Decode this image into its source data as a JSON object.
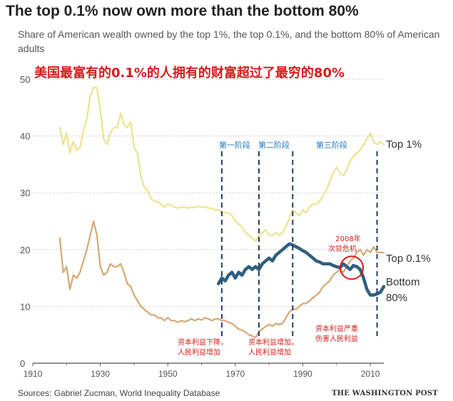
{
  "header": {
    "title": "The top 0.1% now own more than the bottom 80%",
    "subtitle": "Share of American wealth owned by the top 1%, the top 0.1%, and the bottom 80% of American adults",
    "cn_title": "美国最富有的0.1%的人拥有的财富超过了最穷的80%"
  },
  "footer": {
    "source": "Sources: Gabriel Zucman, World Inequality Database",
    "brand": "THE WASHINGTON POST"
  },
  "colors": {
    "top1": "#ece38e",
    "top01": "#d9a772",
    "bottom80": "#2f5f80",
    "marker": "#1f3e6e",
    "annotation": "#d81b1b",
    "phase": "#1e78c8"
  },
  "chart_data": {
    "type": "line",
    "title": "The top 0.1% now own more than the bottom 80%",
    "xlabel": "",
    "ylabel": "",
    "xlim": [
      1910,
      2014
    ],
    "ylim": [
      0,
      50
    ],
    "xticks": [
      1910,
      1930,
      1950,
      1970,
      1990,
      2010
    ],
    "yticks": [
      0,
      10,
      20,
      30,
      40,
      50
    ],
    "grid": "horizontal",
    "series": [
      {
        "name": "Top 1%",
        "label": "Top 1%",
        "x": [
          1918,
          1919,
          1920,
          1921,
          1922,
          1923,
          1924,
          1925,
          1926,
          1927,
          1928,
          1929,
          1930,
          1931,
          1932,
          1933,
          1934,
          1935,
          1936,
          1937,
          1938,
          1939,
          1940,
          1941,
          1942,
          1943,
          1944,
          1945,
          1946,
          1947,
          1948,
          1949,
          1950,
          1951,
          1952,
          1953,
          1954,
          1955,
          1956,
          1957,
          1958,
          1959,
          1960,
          1961,
          1962,
          1963,
          1964,
          1965,
          1966,
          1967,
          1968,
          1969,
          1970,
          1971,
          1972,
          1973,
          1974,
          1975,
          1976,
          1977,
          1978,
          1979,
          1980,
          1981,
          1982,
          1983,
          1984,
          1985,
          1986,
          1987,
          1988,
          1989,
          1990,
          1991,
          1992,
          1993,
          1994,
          1995,
          1996,
          1997,
          1998,
          1999,
          2000,
          2001,
          2002,
          2003,
          2004,
          2005,
          2006,
          2007,
          2008,
          2009,
          2010,
          2011,
          2012,
          2013,
          2014
        ],
        "values": [
          41.5,
          38.5,
          40.5,
          37,
          39,
          37.5,
          38,
          41,
          43,
          47,
          48.5,
          48.5,
          44.5,
          39.5,
          38.5,
          40.5,
          41.5,
          41.5,
          44,
          42,
          41.5,
          42.5,
          38,
          37,
          33,
          31,
          30.5,
          29,
          28.5,
          28.5,
          28,
          27.5,
          28,
          27.8,
          27.5,
          27.3,
          27.5,
          27.5,
          27.3,
          27.5,
          27.4,
          27.6,
          27.5,
          27.5,
          27.3,
          27.3,
          27,
          27,
          26.5,
          26.5,
          26.5,
          26,
          25,
          24.5,
          24,
          23,
          22.5,
          22,
          21.5,
          22.5,
          23,
          23.5,
          22.5,
          22.5,
          23,
          22.5,
          23,
          24,
          25.5,
          27,
          26.5,
          26,
          27,
          26.5,
          27.5,
          28,
          28,
          28.5,
          29.5,
          30.5,
          32,
          33.5,
          34.5,
          33.5,
          33,
          34,
          35.5,
          36.5,
          37,
          37.5,
          38.5,
          39.5,
          40.5,
          39,
          38.5,
          39,
          38.5
        ]
      },
      {
        "name": "Top 0.1%",
        "label": "Top 0.1%",
        "x": [
          1918,
          1919,
          1920,
          1921,
          1922,
          1923,
          1924,
          1925,
          1926,
          1927,
          1928,
          1929,
          1930,
          1931,
          1932,
          1933,
          1934,
          1935,
          1936,
          1937,
          1938,
          1939,
          1940,
          1941,
          1942,
          1943,
          1944,
          1945,
          1946,
          1947,
          1948,
          1949,
          1950,
          1951,
          1952,
          1953,
          1954,
          1955,
          1956,
          1957,
          1958,
          1959,
          1960,
          1961,
          1962,
          1963,
          1964,
          1965,
          1966,
          1967,
          1968,
          1969,
          1970,
          1971,
          1972,
          1973,
          1974,
          1975,
          1976,
          1977,
          1978,
          1979,
          1980,
          1981,
          1982,
          1983,
          1984,
          1985,
          1986,
          1987,
          1988,
          1989,
          1990,
          1991,
          1992,
          1993,
          1994,
          1995,
          1996,
          1997,
          1998,
          1999,
          2000,
          2001,
          2002,
          2003,
          2004,
          2005,
          2006,
          2007,
          2008,
          2009,
          2010,
          2011,
          2012,
          2013,
          2014
        ],
        "values": [
          22,
          16,
          17,
          13,
          15.5,
          15,
          16,
          18,
          20,
          22.5,
          25,
          22.5,
          17,
          15.5,
          16,
          17.5,
          17,
          17,
          17.5,
          16,
          14,
          13.5,
          12,
          11,
          10,
          9.5,
          9,
          8.5,
          8.5,
          8,
          8,
          7.5,
          8,
          7.5,
          7.5,
          7.2,
          7.5,
          7.3,
          7.5,
          7.8,
          7.5,
          7.8,
          7.6,
          8,
          7.8,
          7.5,
          7.8,
          7.8,
          7.5,
          7.5,
          7.2,
          7,
          6.5,
          6,
          5.8,
          5.5,
          5,
          4.8,
          4.5,
          5.5,
          6,
          6.5,
          6.8,
          6.5,
          7,
          6.8,
          7,
          8,
          9,
          9.5,
          9.5,
          10,
          10.5,
          10.5,
          11,
          11.5,
          12,
          12.5,
          13.5,
          14,
          14.5,
          15.5,
          16,
          16.5,
          16,
          17,
          18,
          18.5,
          19.5,
          20,
          19,
          20,
          19.5,
          20.5,
          19.5,
          19.5,
          19.5
        ]
      },
      {
        "name": "Bottom 80%",
        "label": "Bottom 80%",
        "x": [
          1965,
          1966,
          1967,
          1968,
          1969,
          1970,
          1971,
          1972,
          1973,
          1974,
          1975,
          1976,
          1977,
          1978,
          1979,
          1980,
          1981,
          1982,
          1983,
          1984,
          1985,
          1986,
          1987,
          1988,
          1989,
          1990,
          1991,
          1992,
          1993,
          1994,
          1995,
          1996,
          1997,
          1998,
          1999,
          2000,
          2001,
          2002,
          2003,
          2004,
          2005,
          2006,
          2007,
          2008,
          2009,
          2010,
          2011,
          2012,
          2013,
          2014
        ],
        "values": [
          14,
          15,
          14.5,
          15.5,
          16,
          15,
          16,
          15.5,
          16.5,
          17,
          16.5,
          17,
          16.5,
          17.5,
          18,
          18.5,
          18,
          19,
          19.5,
          20,
          20.5,
          21,
          20.8,
          20.5,
          20.2,
          19.8,
          19.5,
          19,
          18.5,
          18,
          17.8,
          17.5,
          17.5,
          17.5,
          17.2,
          17,
          16.8,
          17.5,
          17,
          16.5,
          17.2,
          17,
          16.5,
          15,
          13,
          12,
          12,
          12.2,
          12.5,
          13.5
        ]
      }
    ],
    "annotations": {
      "phase1": "第一阶段",
      "phase2": "第二阶段",
      "phase3": "第三阶段",
      "crisis": "2008年次贷危机",
      "note1": "资本利益下降，人民利益增加",
      "note2": "资本利益增加，人民利益增加",
      "note3": "资本利益严重伤害人民利益"
    }
  }
}
